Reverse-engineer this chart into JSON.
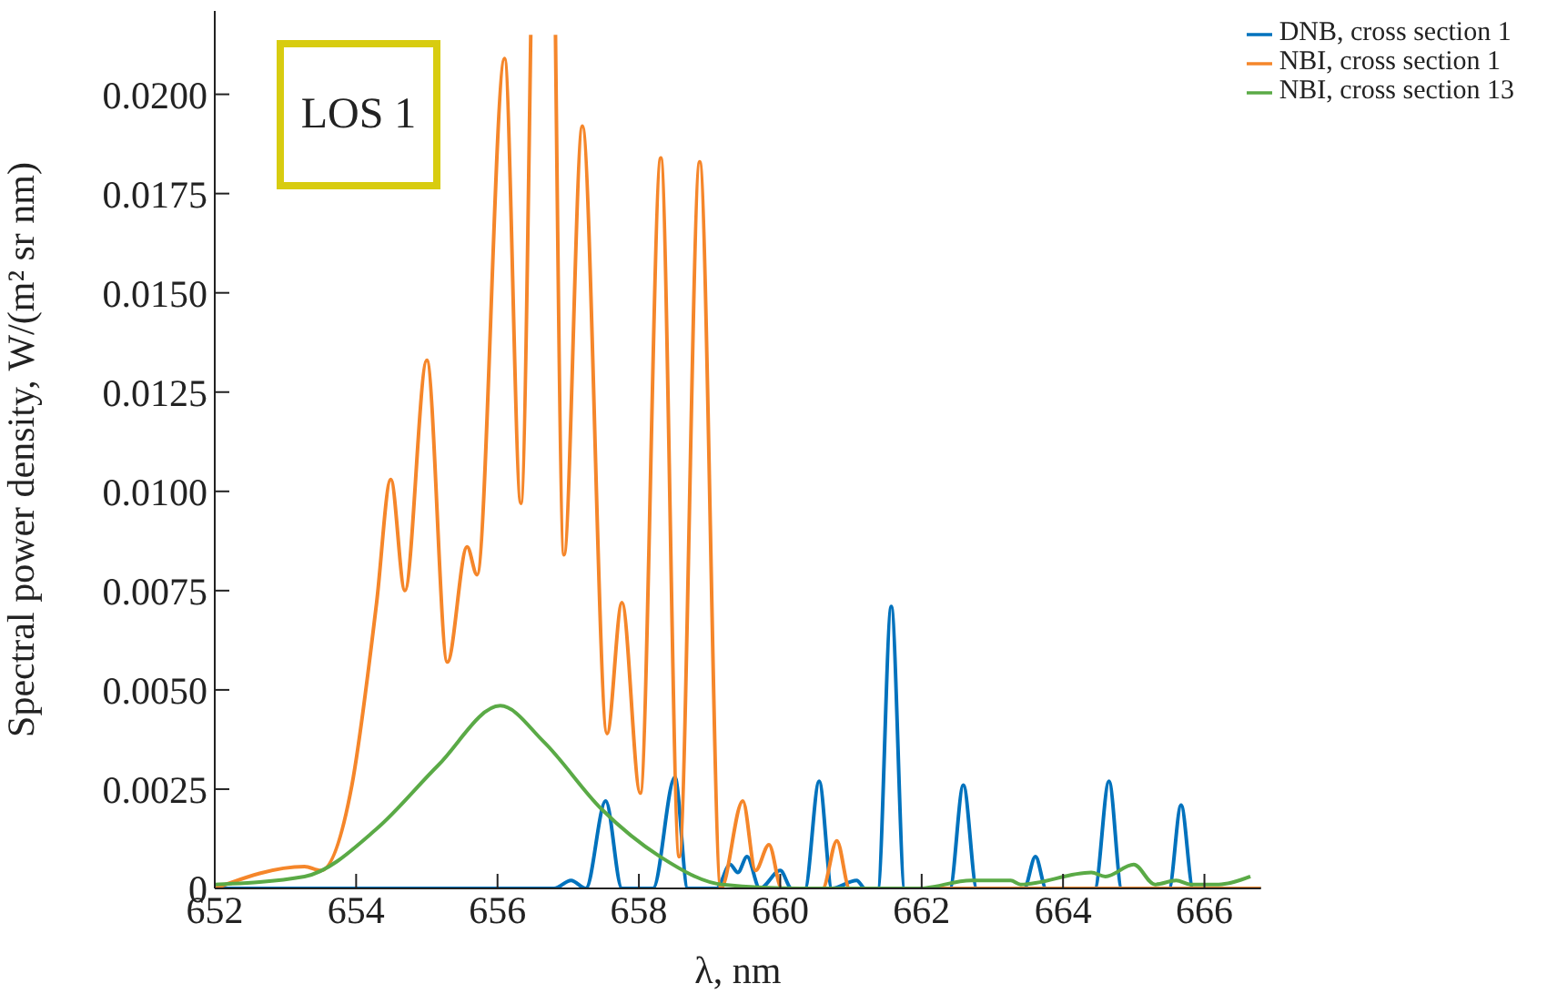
{
  "chart_data": {
    "type": "line",
    "xlabel": "λ, nm",
    "ylabel": "Spectral power density, W/(m² sr nm)",
    "annotations": [
      "LOS 1"
    ],
    "xlim": [
      652,
      666.8
    ],
    "xticks": [
      652,
      654,
      656,
      658,
      660,
      662,
      664,
      666
    ],
    "ylim": [
      0,
      0.0221
    ],
    "yticks": [
      {
        "value": 0,
        "label": "0"
      },
      {
        "value": 0.0025,
        "label": "0.0025"
      },
      {
        "value": 0.005,
        "label": "0.0050"
      },
      {
        "value": 0.0075,
        "label": "0.0075"
      },
      {
        "value": 0.01,
        "label": "0.0100"
      },
      {
        "value": 0.0125,
        "label": "0.0125"
      },
      {
        "value": 0.015,
        "label": "0.0150"
      },
      {
        "value": 0.0175,
        "label": "0.0175"
      },
      {
        "value": 0.02,
        "label": "0.0200"
      }
    ],
    "grid": false,
    "legend": "top right",
    "marker": "none",
    "line_style": "solid",
    "series": [
      {
        "name": "DNB, cross section 1",
        "color": "#0072bd",
        "x": [
          652,
          656.8,
          657.04,
          657.25,
          657.53,
          657.76,
          658.2,
          658.51,
          658.69,
          659.1,
          659.29,
          659.4,
          659.53,
          659.71,
          660.0,
          660.16,
          660.35,
          660.55,
          660.73,
          661.08,
          661.2,
          661.38,
          661.57,
          661.76,
          662.4,
          662.59,
          662.78,
          663.45,
          663.61,
          663.76,
          664.45,
          664.65,
          664.83,
          665.5,
          665.67,
          665.84,
          666.8
        ],
        "values": [
          0,
          0,
          0.0002,
          0,
          0.0022,
          0,
          0,
          0.0028,
          0,
          0,
          0.0006,
          0.0004,
          0.0008,
          0,
          0.00045,
          0,
          0,
          0.0027,
          0,
          0.0002,
          0,
          0,
          0.0071,
          0,
          0,
          0.0026,
          0,
          0,
          0.0008,
          0,
          0,
          0.0027,
          0,
          0,
          0.0021,
          0,
          0
        ]
      },
      {
        "name": "NBI, cross section 1",
        "color": "#f5862a",
        "x": [
          652,
          653.27,
          653.5,
          653.94,
          654.29,
          654.49,
          654.69,
          655.0,
          655.29,
          655.57,
          655.71,
          656.1,
          656.33,
          656.47,
          656.65,
          656.82,
          656.94,
          657.2,
          657.55,
          657.76,
          658.02,
          658.31,
          658.57,
          658.86,
          659.16,
          659.47,
          659.65,
          659.84,
          660.02,
          660.6,
          660.8,
          660.98,
          666.8
        ],
        "values": [
          0,
          0.00055,
          0.00045,
          0.0026,
          0.0072,
          0.0103,
          0.0075,
          0.0133,
          0.0057,
          0.0086,
          0.0079,
          0.0209,
          0.0097,
          0.0215,
          null,
          0.0215,
          0.0084,
          0.0192,
          0.0039,
          0.0072,
          0.0024,
          0.0184,
          0.0008,
          0.0183,
          0,
          0.0022,
          0.00045,
          0.0011,
          0,
          0,
          0.0012,
          0,
          0
        ]
      },
      {
        "name": "NBI, cross section 13",
        "color": "#5aaa46",
        "x": [
          652,
          653.27,
          654.29,
          655.16,
          656.04,
          656.65,
          657.47,
          658.3,
          659.18,
          660.3,
          661.96,
          662.7,
          663.26,
          663.4,
          664.4,
          664.6,
          665.0,
          665.3,
          665.6,
          665.8,
          666.2,
          666.65
        ],
        "values": [
          0.0001,
          0.0003,
          0.0015,
          0.0031,
          0.0046,
          0.0037,
          0.002,
          0.0008,
          0.0001,
          0,
          0,
          0.0002,
          0.0002,
          0.0001,
          0.0004,
          0.0003,
          0.0006,
          0.0001,
          0.0002,
          0.0001,
          0.0001,
          0.0003
        ]
      }
    ]
  }
}
